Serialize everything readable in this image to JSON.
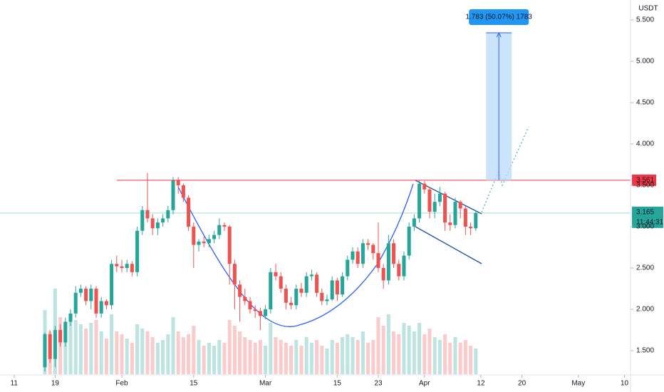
{
  "chart_data": {
    "type": "candlestick",
    "currency": "USDT",
    "xlim": [
      -23.75,
      99.17
    ],
    "ylim": [
      1.216,
      5.741
    ],
    "xticks": [
      {
        "value": -21,
        "label": "11"
      },
      {
        "value": -13,
        "label": "19"
      },
      {
        "value": 0,
        "label": "Feb"
      },
      {
        "value": 14,
        "label": "15"
      },
      {
        "value": 28,
        "label": "Mar"
      },
      {
        "value": 42,
        "label": "15"
      },
      {
        "value": 50,
        "label": "23"
      },
      {
        "value": 59,
        "label": "Apr"
      },
      {
        "value": 70,
        "label": "12"
      },
      {
        "value": 78,
        "label": "20"
      },
      {
        "value": 89,
        "label": "May"
      },
      {
        "value": 98,
        "label": "10"
      }
    ],
    "yticks": [
      {
        "value": 5.5,
        "label": "5.500"
      },
      {
        "value": 5.0,
        "label": "5.000"
      },
      {
        "value": 4.5,
        "label": "4.500"
      },
      {
        "value": 4.0,
        "label": "4.000"
      },
      {
        "value": 3.5,
        "label": "3.500"
      },
      {
        "value": 3.0,
        "label": "3.000"
      },
      {
        "value": 2.5,
        "label": "2.500"
      },
      {
        "value": 2.0,
        "label": "2.000"
      },
      {
        "value": 1.5,
        "label": "1.500"
      }
    ],
    "up_color": "#26a69a",
    "down_color": "#ef5350",
    "columns": [
      "day",
      "open",
      "high",
      "low",
      "close",
      "volume"
    ],
    "candles": [
      [
        -15,
        1.3,
        1.72,
        1.25,
        1.7,
        45
      ],
      [
        -14,
        1.7,
        1.75,
        1.35,
        1.4,
        30
      ],
      [
        -13,
        1.4,
        1.8,
        1.3,
        1.75,
        60
      ],
      [
        -12,
        1.75,
        1.82,
        1.55,
        1.6,
        40
      ],
      [
        -11,
        1.6,
        1.9,
        1.55,
        1.85,
        35
      ],
      [
        -10,
        1.85,
        2.0,
        1.8,
        1.95,
        40
      ],
      [
        -9,
        1.95,
        2.28,
        1.9,
        2.2,
        38
      ],
      [
        -8,
        2.2,
        2.3,
        2.15,
        2.25,
        35
      ],
      [
        -7,
        2.25,
        2.28,
        2.05,
        2.1,
        32
      ],
      [
        -6,
        2.1,
        2.3,
        2.0,
        2.25,
        36
      ],
      [
        -5,
        2.25,
        2.28,
        1.9,
        1.95,
        38
      ],
      [
        -4,
        1.95,
        2.15,
        1.9,
        2.1,
        30
      ],
      [
        -3,
        2.1,
        2.12,
        2.0,
        2.05,
        25
      ],
      [
        -2,
        2.05,
        2.6,
        2.0,
        2.55,
        42
      ],
      [
        -1,
        2.55,
        2.65,
        2.45,
        2.52,
        30
      ],
      [
        0,
        2.52,
        2.6,
        2.45,
        2.5,
        28
      ],
      [
        1,
        2.5,
        2.6,
        2.45,
        2.55,
        25
      ],
      [
        2,
        2.55,
        2.58,
        2.4,
        2.45,
        22
      ],
      [
        3,
        2.45,
        3.0,
        2.4,
        2.95,
        35
      ],
      [
        4,
        2.95,
        3.25,
        2.9,
        3.2,
        32
      ],
      [
        5,
        3.2,
        3.65,
        3.05,
        3.1,
        30
      ],
      [
        6,
        3.1,
        3.15,
        2.9,
        2.98,
        26
      ],
      [
        7,
        2.98,
        3.1,
        2.9,
        3.05,
        22
      ],
      [
        8,
        3.05,
        3.15,
        3.0,
        3.1,
        24
      ],
      [
        9,
        3.1,
        3.25,
        3.05,
        3.2,
        28
      ],
      [
        10,
        3.2,
        3.6,
        3.15,
        3.56,
        40
      ],
      [
        11,
        3.56,
        3.6,
        3.4,
        3.5,
        30
      ],
      [
        12,
        3.5,
        3.52,
        3.3,
        3.35,
        26
      ],
      [
        13,
        3.35,
        3.38,
        2.95,
        3.0,
        28
      ],
      [
        14,
        3.0,
        3.05,
        2.5,
        2.78,
        34
      ],
      [
        15,
        2.78,
        2.85,
        2.7,
        2.82,
        24
      ],
      [
        16,
        2.82,
        2.88,
        2.75,
        2.8,
        20
      ],
      [
        17,
        2.8,
        2.9,
        2.75,
        2.85,
        22
      ],
      [
        18,
        2.85,
        2.95,
        2.8,
        2.9,
        20
      ],
      [
        19,
        2.9,
        3.1,
        2.85,
        3.02,
        24
      ],
      [
        20,
        3.02,
        3.05,
        2.95,
        3.0,
        22
      ],
      [
        21,
        3.0,
        3.02,
        2.3,
        2.55,
        38
      ],
      [
        22,
        2.55,
        2.6,
        2.0,
        2.3,
        34
      ],
      [
        23,
        2.3,
        2.35,
        1.85,
        2.15,
        30
      ],
      [
        24,
        2.15,
        2.25,
        2.05,
        2.1,
        26
      ],
      [
        25,
        2.1,
        2.15,
        1.95,
        2.0,
        24
      ],
      [
        26,
        2.0,
        2.05,
        1.9,
        1.98,
        22
      ],
      [
        27,
        1.98,
        2.02,
        1.75,
        1.92,
        24
      ],
      [
        28,
        1.92,
        2.05,
        1.88,
        2.0,
        20
      ],
      [
        29,
        2.0,
        2.5,
        1.95,
        2.45,
        36
      ],
      [
        30,
        2.45,
        2.55,
        2.35,
        2.4,
        26
      ],
      [
        31,
        2.4,
        2.45,
        2.2,
        2.25,
        24
      ],
      [
        32,
        2.25,
        2.3,
        2.0,
        2.08,
        22
      ],
      [
        33,
        2.08,
        2.15,
        2.0,
        2.05,
        20
      ],
      [
        34,
        2.05,
        2.3,
        2.0,
        2.25,
        24
      ],
      [
        35,
        2.25,
        2.32,
        2.15,
        2.2,
        20
      ],
      [
        36,
        2.2,
        2.45,
        2.15,
        2.4,
        26
      ],
      [
        37,
        2.4,
        2.48,
        2.35,
        2.42,
        22
      ],
      [
        38,
        2.42,
        2.45,
        2.15,
        2.2,
        24
      ],
      [
        39,
        2.2,
        2.25,
        2.05,
        2.1,
        20
      ],
      [
        40,
        2.1,
        2.18,
        2.05,
        2.12,
        18
      ],
      [
        41,
        2.12,
        2.4,
        2.1,
        2.35,
        24
      ],
      [
        42,
        2.35,
        2.38,
        2.1,
        2.18,
        22
      ],
      [
        43,
        2.18,
        2.45,
        2.15,
        2.4,
        26
      ],
      [
        44,
        2.4,
        2.65,
        2.35,
        2.6,
        28
      ],
      [
        45,
        2.6,
        2.75,
        2.55,
        2.7,
        26
      ],
      [
        46,
        2.7,
        2.75,
        2.5,
        2.55,
        24
      ],
      [
        47,
        2.55,
        2.85,
        2.5,
        2.8,
        30
      ],
      [
        48,
        2.8,
        2.85,
        2.72,
        2.78,
        22
      ],
      [
        49,
        2.78,
        2.8,
        2.6,
        2.68,
        24
      ],
      [
        50,
        2.68,
        3.05,
        2.45,
        2.5,
        40
      ],
      [
        51,
        2.5,
        2.55,
        2.25,
        2.35,
        34
      ],
      [
        52,
        2.35,
        2.9,
        2.3,
        2.8,
        42
      ],
      [
        53,
        2.8,
        2.85,
        2.5,
        2.55,
        30
      ],
      [
        54,
        2.55,
        2.6,
        2.35,
        2.4,
        28
      ],
      [
        55,
        2.4,
        2.7,
        2.35,
        2.65,
        36
      ],
      [
        56,
        2.65,
        3.05,
        2.6,
        3.0,
        34
      ],
      [
        57,
        3.0,
        3.15,
        2.95,
        3.1,
        30
      ],
      [
        58,
        3.1,
        3.56,
        3.05,
        3.52,
        36
      ],
      [
        59,
        3.52,
        3.55,
        3.4,
        3.45,
        28
      ],
      [
        60,
        3.45,
        3.48,
        3.1,
        3.18,
        32
      ],
      [
        61,
        3.18,
        3.4,
        3.1,
        3.3,
        26
      ],
      [
        62,
        3.3,
        3.48,
        3.25,
        3.4,
        24
      ],
      [
        63,
        3.4,
        3.42,
        2.95,
        3.05,
        28
      ],
      [
        64,
        3.05,
        3.15,
        2.95,
        3.02,
        22
      ],
      [
        65,
        3.02,
        3.35,
        2.98,
        3.3,
        26
      ],
      [
        66,
        3.3,
        3.32,
        3.1,
        3.22,
        22
      ],
      [
        67,
        3.22,
        3.25,
        2.9,
        3.0,
        24
      ],
      [
        68,
        3.0,
        3.05,
        2.9,
        2.98,
        20
      ],
      [
        69,
        2.98,
        3.2,
        2.95,
        3.165,
        18
      ]
    ],
    "resistance": {
      "value": 3.561,
      "label": "3.561",
      "start_day": -1,
      "color": "#f23645"
    },
    "last_price": {
      "value": 3.165,
      "label": "3.165",
      "countdown": "11:44:31"
    },
    "target": {
      "from": 3.561,
      "to": 5.344,
      "start_day": 71,
      "end_day": 76,
      "label": "1.783 (50.07%) 1783"
    }
  }
}
